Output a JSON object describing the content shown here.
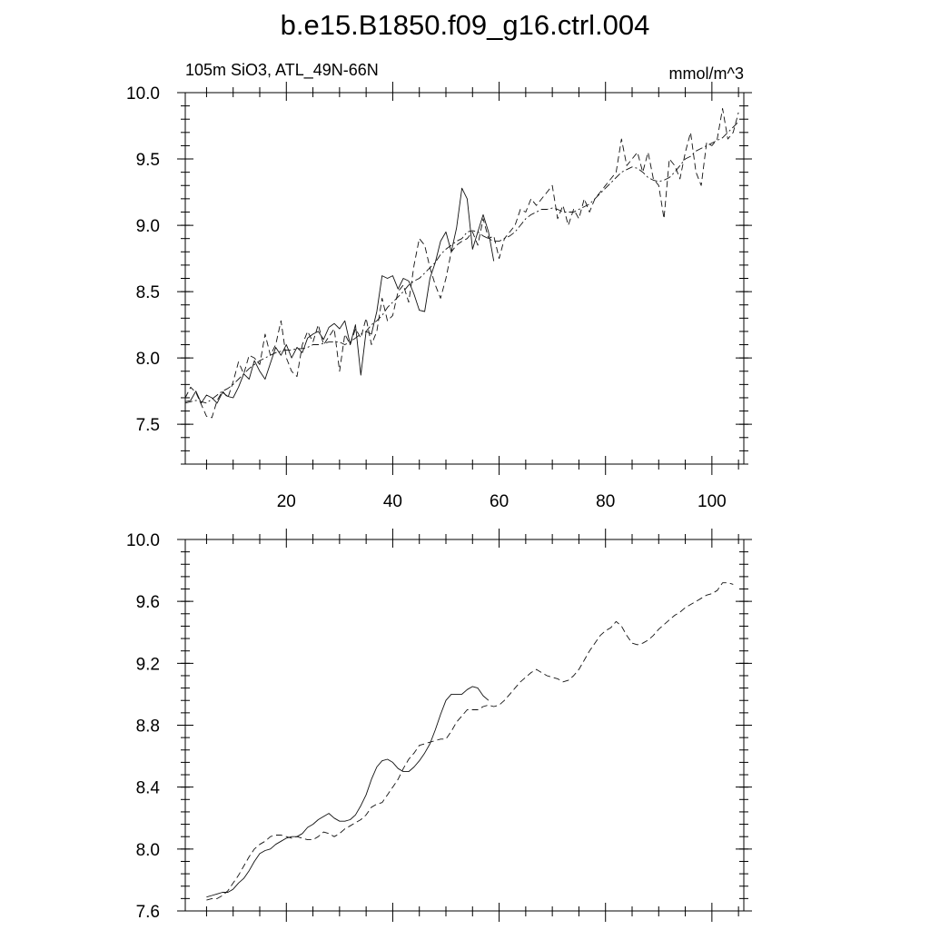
{
  "title": "b.e15.B1850.f09_g16.ctrl.004",
  "chart_data": [
    {
      "type": "line",
      "subtitle_left": "105m SiO3, ATL_49N-66N",
      "subtitle_right": "mmol/m^3",
      "xlim": [
        1,
        106
      ],
      "ylim": [
        7.2,
        10.0
      ],
      "yticks": [
        7.5,
        8.0,
        8.5,
        9.0,
        9.5,
        10.0
      ],
      "xticks": [
        20,
        40,
        60,
        80,
        100
      ],
      "grid": false,
      "series": [
        {
          "style": "solid",
          "x": [
            1,
            2,
            3,
            4,
            5,
            6,
            7,
            8,
            9,
            10,
            11,
            12,
            13,
            14,
            15,
            16,
            17,
            18,
            19,
            20,
            21,
            22,
            23,
            24,
            25,
            26,
            27,
            28,
            29,
            30,
            31,
            32,
            33,
            34,
            35,
            36,
            37,
            38,
            39,
            40,
            41,
            42,
            43,
            44,
            45,
            46,
            47,
            48,
            49,
            50,
            51,
            52,
            53,
            54,
            55,
            56,
            57,
            58,
            59
          ],
          "y": [
            7.67,
            7.68,
            7.75,
            7.66,
            7.72,
            7.7,
            7.66,
            7.74,
            7.71,
            7.7,
            7.78,
            7.88,
            7.84,
            7.98,
            7.9,
            7.84,
            7.96,
            8.08,
            8.02,
            8.1,
            8.0,
            8.08,
            8.04,
            8.15,
            8.18,
            8.2,
            8.14,
            8.23,
            8.26,
            8.22,
            8.28,
            8.1,
            8.25,
            7.87,
            8.2,
            8.18,
            8.35,
            8.62,
            8.6,
            8.62,
            8.52,
            8.6,
            8.58,
            8.48,
            8.36,
            8.35,
            8.6,
            8.72,
            8.88,
            8.95,
            8.8,
            8.98,
            9.28,
            9.2,
            8.82,
            8.95,
            9.08,
            8.95,
            8.73
          ]
        },
        {
          "style": "dashed",
          "x": [
            1,
            2,
            3,
            4,
            5,
            6,
            7,
            8,
            9,
            10,
            11,
            12,
            13,
            14,
            15,
            16,
            17,
            18,
            19,
            20,
            21,
            22,
            23,
            24,
            25,
            26,
            27,
            28,
            29,
            30,
            31,
            32,
            33,
            34,
            35,
            36,
            37,
            38,
            39,
            40,
            41,
            42,
            43,
            44,
            45,
            46,
            47,
            48,
            49,
            50,
            51,
            52,
            53,
            54,
            55,
            56,
            57,
            58,
            59,
            60,
            61,
            62,
            63,
            64,
            65,
            66,
            67,
            68,
            69,
            70,
            71,
            72,
            73,
            74,
            75,
            76,
            77,
            78,
            79,
            80,
            81,
            82,
            83,
            84,
            85,
            86,
            87,
            88,
            89,
            90,
            91,
            92,
            93,
            94,
            95,
            96,
            97,
            98,
            99,
            100,
            101,
            102,
            103,
            104,
            105
          ],
          "y": [
            7.7,
            7.78,
            7.74,
            7.65,
            7.56,
            7.55,
            7.68,
            7.75,
            7.7,
            7.82,
            7.97,
            7.88,
            8.02,
            8.0,
            7.95,
            8.18,
            8.02,
            8.1,
            8.28,
            8.0,
            7.9,
            7.86,
            8.1,
            8.2,
            8.12,
            8.25,
            8.1,
            8.16,
            8.22,
            7.9,
            8.18,
            8.1,
            8.22,
            8.15,
            8.3,
            8.1,
            8.2,
            8.45,
            8.28,
            8.32,
            8.5,
            8.55,
            8.42,
            8.7,
            8.9,
            8.85,
            8.68,
            8.55,
            8.45,
            8.6,
            8.8,
            8.85,
            8.88,
            8.9,
            8.95,
            8.85,
            9.05,
            8.9,
            8.92,
            8.75,
            8.9,
            8.95,
            9.0,
            9.12,
            9.1,
            9.2,
            9.15,
            9.2,
            9.25,
            9.3,
            9.05,
            9.15,
            9.0,
            9.12,
            9.05,
            9.2,
            9.1,
            9.2,
            9.25,
            9.3,
            9.35,
            9.4,
            9.65,
            9.45,
            9.5,
            9.55,
            9.4,
            9.55,
            9.35,
            9.3,
            9.05,
            9.5,
            9.45,
            9.35,
            9.55,
            9.7,
            9.4,
            9.3,
            9.62,
            9.6,
            9.65,
            9.88,
            9.65,
            9.7,
            9.85
          ]
        },
        {
          "style": "dashdot",
          "x": [
            1,
            2,
            3,
            4,
            5,
            6,
            7,
            8,
            9,
            10,
            11,
            12,
            13,
            14,
            15,
            16,
            17,
            18,
            19,
            20,
            21,
            22,
            23,
            24,
            25,
            26,
            27,
            28,
            29,
            30,
            31,
            32,
            33,
            34,
            35,
            36,
            37,
            38,
            39,
            40,
            41,
            42,
            43,
            44,
            45,
            46,
            47,
            48,
            49,
            50,
            51,
            52,
            53,
            54,
            55,
            56,
            57,
            58,
            59,
            60,
            61,
            62,
            63,
            64,
            65,
            66,
            67,
            68,
            69,
            70,
            71,
            72,
            73,
            74,
            75,
            76,
            77,
            78,
            79,
            80,
            81,
            82,
            83,
            84,
            85,
            86,
            87,
            88,
            89,
            90,
            91,
            92,
            93,
            94,
            95,
            96,
            97,
            98,
            99,
            100,
            101,
            102,
            103,
            104,
            105
          ],
          "y": [
            7.66,
            7.67,
            7.68,
            7.67,
            7.66,
            7.69,
            7.72,
            7.75,
            7.77,
            7.8,
            7.84,
            7.88,
            7.92,
            7.95,
            7.98,
            8.0,
            8.02,
            8.04,
            8.05,
            8.06,
            8.06,
            8.07,
            8.07,
            8.08,
            8.1,
            8.1,
            8.11,
            8.12,
            8.12,
            8.12,
            8.1,
            8.12,
            8.15,
            8.18,
            8.2,
            8.25,
            8.28,
            8.32,
            8.38,
            8.42,
            8.46,
            8.5,
            8.55,
            8.58,
            8.6,
            8.64,
            8.68,
            8.72,
            8.78,
            8.82,
            8.85,
            8.88,
            8.9,
            8.95,
            8.96,
            8.95,
            8.92,
            8.9,
            8.88,
            8.88,
            8.9,
            8.92,
            8.95,
            9.0,
            9.05,
            9.08,
            9.1,
            9.12,
            9.12,
            9.13,
            9.12,
            9.1,
            9.1,
            9.1,
            9.12,
            9.14,
            9.16,
            9.2,
            9.24,
            9.28,
            9.32,
            9.36,
            9.4,
            9.42,
            9.44,
            9.43,
            9.4,
            9.36,
            9.34,
            9.33,
            9.34,
            9.36,
            9.4,
            9.45,
            9.5,
            9.52,
            9.56,
            9.58,
            9.6,
            9.62,
            9.64,
            9.66,
            9.7,
            9.74,
            9.78
          ]
        }
      ]
    },
    {
      "type": "line",
      "xlim": [
        1,
        106
      ],
      "ylim": [
        7.6,
        10.0
      ],
      "yticks": [
        7.6,
        8.0,
        8.4,
        8.8,
        9.2,
        9.6,
        10.0
      ],
      "xticks": [
        20,
        40,
        60,
        80,
        100
      ],
      "grid": false,
      "series": [
        {
          "style": "solid",
          "x": [
            5,
            6,
            7,
            8,
            9,
            10,
            11,
            12,
            13,
            14,
            15,
            16,
            17,
            18,
            19,
            20,
            21,
            22,
            23,
            24,
            25,
            26,
            27,
            28,
            29,
            30,
            31,
            32,
            33,
            34,
            35,
            36,
            37,
            38,
            39,
            40,
            41,
            42,
            43,
            44,
            45,
            46,
            47,
            48,
            49,
            50,
            51,
            52,
            53,
            54,
            55,
            56,
            57,
            58
          ],
          "y": [
            7.69,
            7.7,
            7.71,
            7.72,
            7.72,
            7.74,
            7.78,
            7.81,
            7.86,
            7.92,
            7.97,
            7.99,
            8.0,
            8.03,
            8.05,
            8.07,
            8.08,
            8.08,
            8.1,
            8.14,
            8.16,
            8.19,
            8.21,
            8.23,
            8.2,
            8.18,
            8.18,
            8.19,
            8.22,
            8.28,
            8.35,
            8.45,
            8.53,
            8.57,
            8.58,
            8.56,
            8.52,
            8.5,
            8.5,
            8.53,
            8.57,
            8.62,
            8.68,
            8.77,
            8.87,
            8.96,
            9.0,
            9.0,
            9.0,
            9.03,
            9.05,
            9.04,
            8.99,
            8.96
          ]
        },
        {
          "style": "dashed",
          "x": [
            5,
            6,
            7,
            8,
            9,
            10,
            11,
            12,
            13,
            14,
            15,
            16,
            17,
            18,
            19,
            20,
            21,
            22,
            23,
            24,
            25,
            26,
            27,
            28,
            29,
            30,
            31,
            32,
            33,
            34,
            35,
            36,
            37,
            38,
            39,
            40,
            41,
            42,
            43,
            44,
            45,
            46,
            47,
            48,
            49,
            50,
            51,
            52,
            53,
            54,
            55,
            56,
            57,
            58,
            59,
            60,
            61,
            62,
            63,
            64,
            65,
            66,
            67,
            68,
            69,
            70,
            71,
            72,
            73,
            74,
            75,
            76,
            77,
            78,
            79,
            80,
            81,
            82,
            83,
            84,
            85,
            86,
            87,
            88,
            89,
            90,
            91,
            92,
            93,
            94,
            95,
            96,
            97,
            98,
            99,
            100,
            101,
            102,
            103,
            104
          ],
          "y": [
            7.67,
            7.68,
            7.68,
            7.7,
            7.73,
            7.78,
            7.83,
            7.89,
            7.95,
            8.0,
            8.03,
            8.05,
            8.08,
            8.09,
            8.09,
            8.08,
            8.07,
            8.08,
            8.07,
            8.06,
            8.06,
            8.08,
            8.11,
            8.1,
            8.08,
            8.1,
            8.13,
            8.15,
            8.17,
            8.19,
            8.22,
            8.27,
            8.29,
            8.3,
            8.35,
            8.4,
            8.45,
            8.52,
            8.58,
            8.62,
            8.67,
            8.68,
            8.69,
            8.7,
            8.71,
            8.71,
            8.76,
            8.82,
            8.86,
            8.9,
            8.9,
            8.9,
            8.92,
            8.93,
            8.92,
            8.93,
            8.96,
            9.0,
            9.04,
            9.08,
            9.11,
            9.14,
            9.16,
            9.14,
            9.12,
            9.11,
            9.1,
            9.08,
            9.09,
            9.12,
            9.16,
            9.22,
            9.28,
            9.33,
            9.38,
            9.41,
            9.43,
            9.47,
            9.44,
            9.38,
            9.33,
            9.32,
            9.33,
            9.35,
            9.38,
            9.42,
            9.45,
            9.48,
            9.51,
            9.53,
            9.56,
            9.58,
            9.6,
            9.62,
            9.64,
            9.65,
            9.67,
            9.72,
            9.72,
            9.71
          ]
        }
      ]
    }
  ]
}
